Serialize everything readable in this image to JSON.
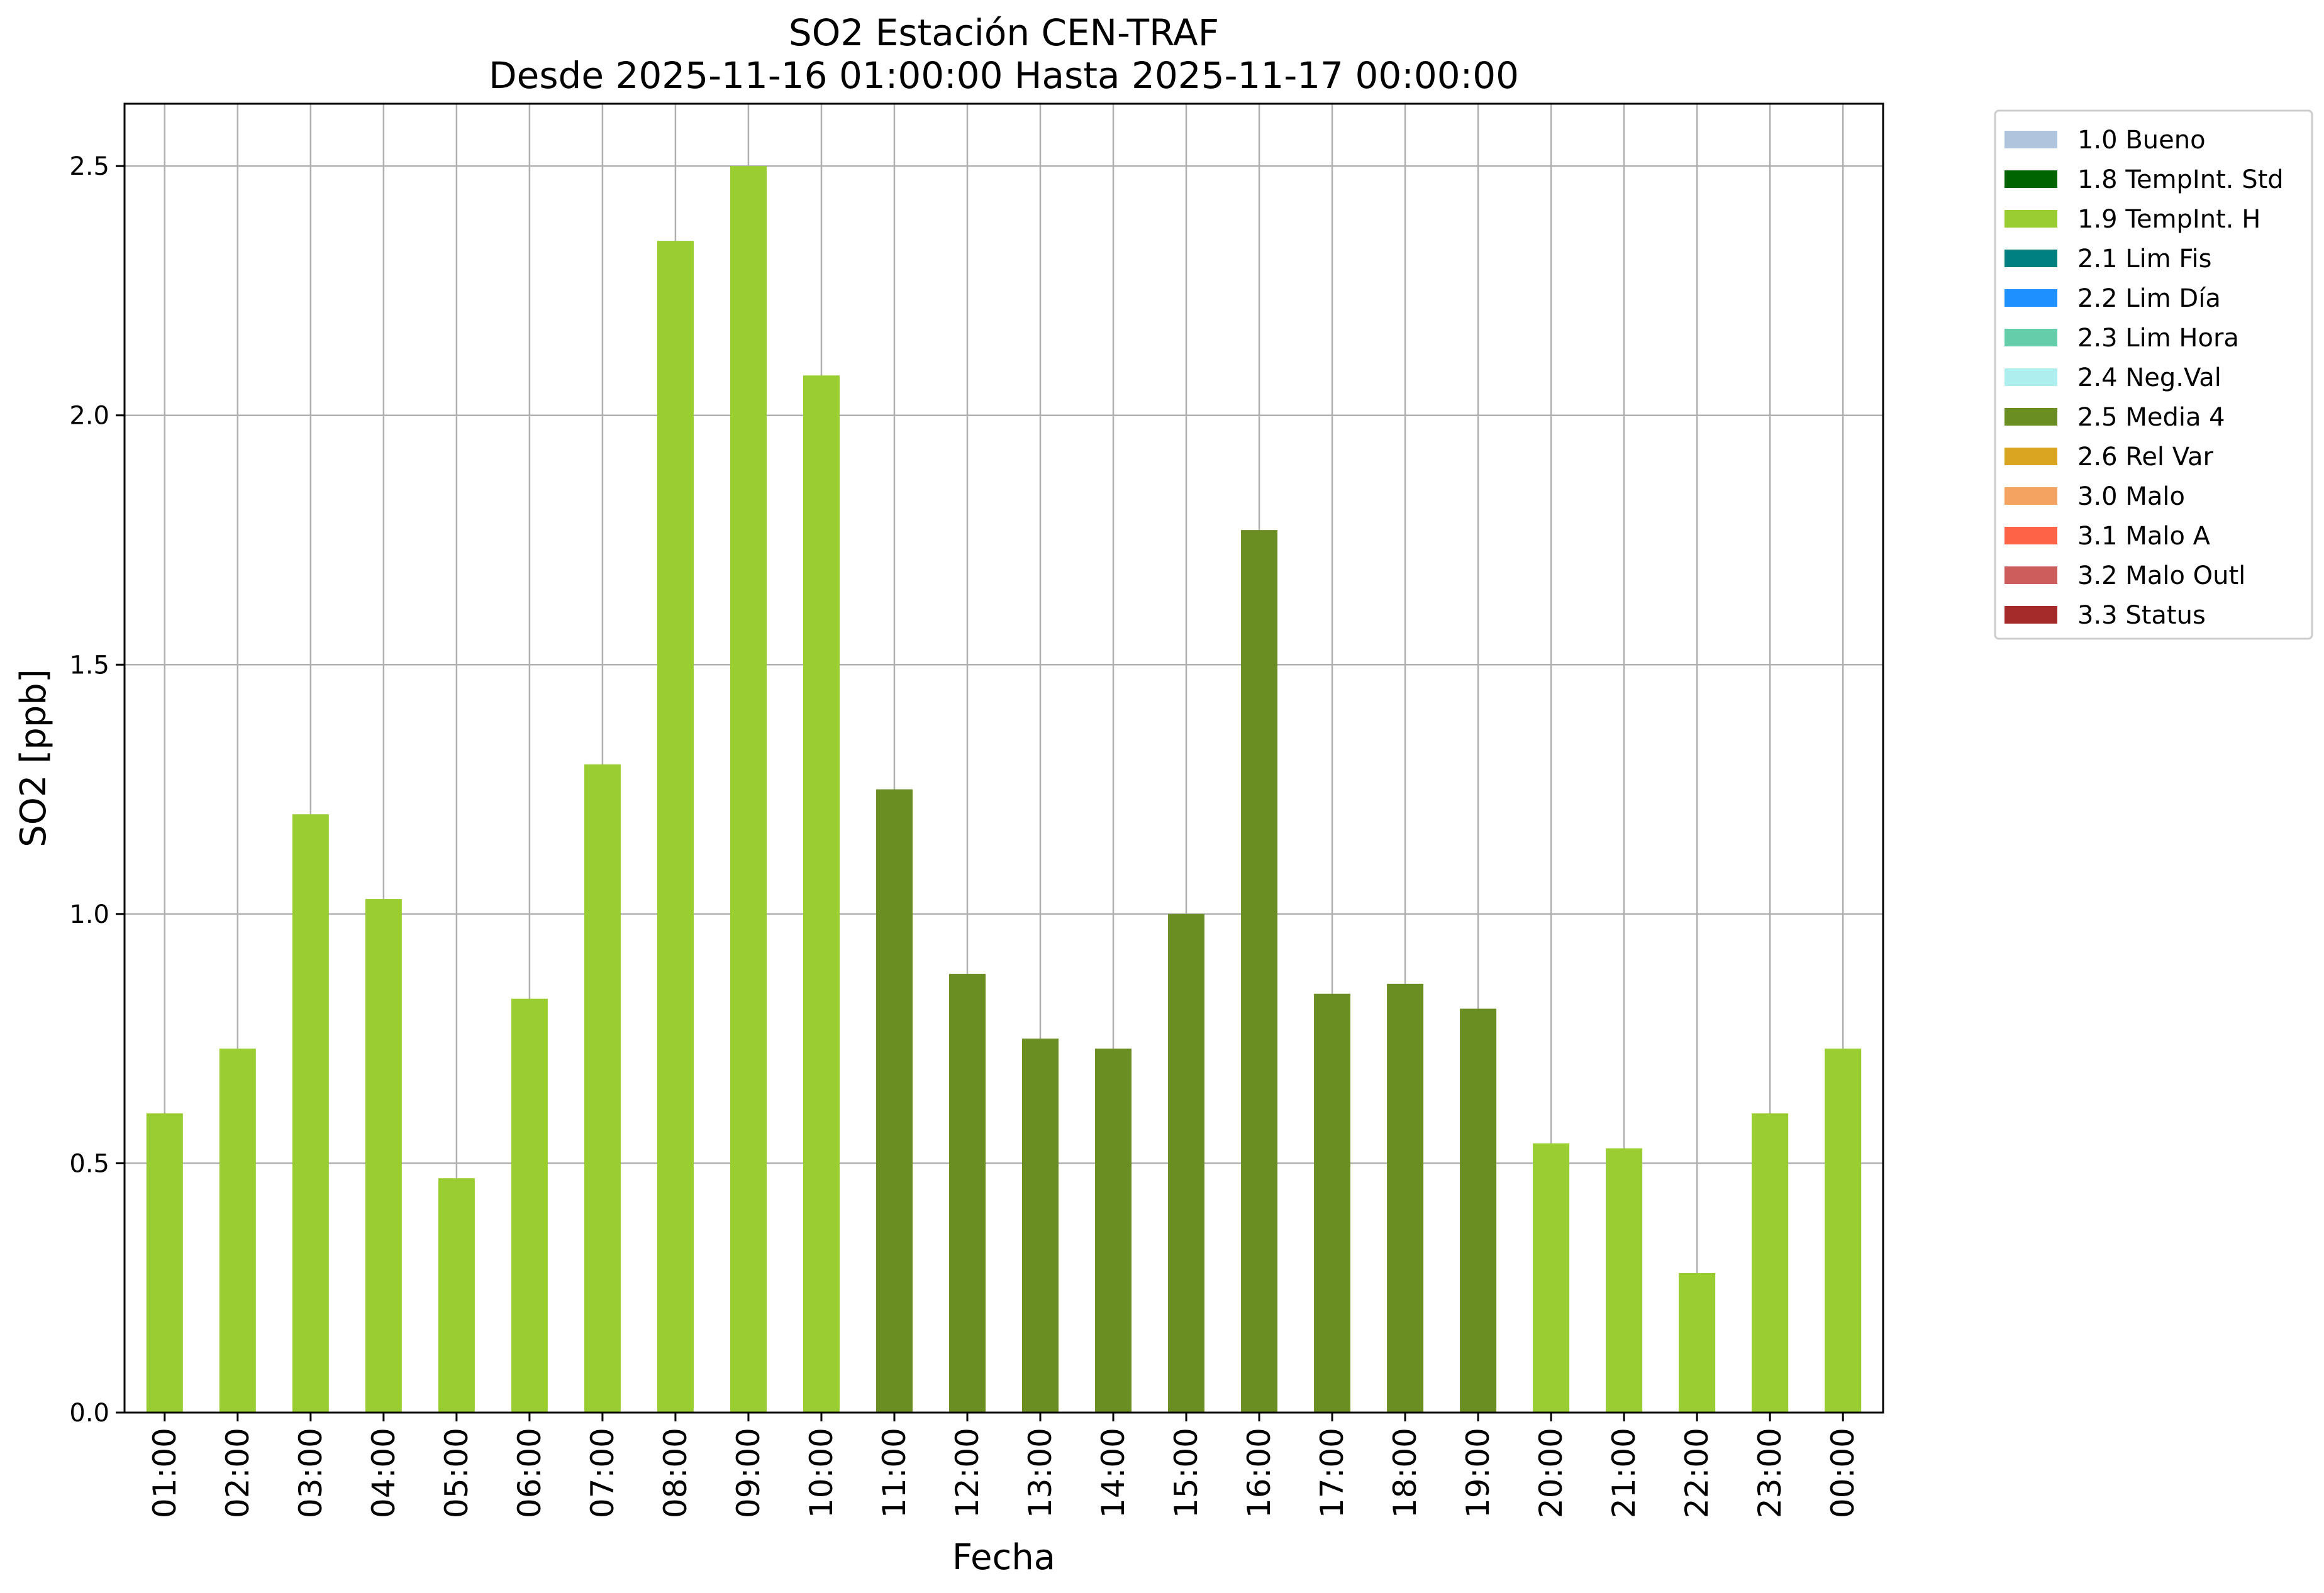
{
  "chart_data": {
    "type": "bar",
    "title": "SO2 Estación CEN-TRAF",
    "subtitle": "Desde 2025-11-16 01:00:00 Hasta 2025-11-17 00:00:00",
    "xlabel": "Fecha",
    "ylabel": "SO2 [ppb]",
    "ylim": [
      0,
      2.625
    ],
    "yticks": [
      "0.0",
      "0.5",
      "1.0",
      "1.5",
      "2.0",
      "2.5"
    ],
    "grid": true,
    "legend_position": "outside-top-right",
    "categories": [
      "01:00",
      "02:00",
      "03:00",
      "04:00",
      "05:00",
      "06:00",
      "07:00",
      "08:00",
      "09:00",
      "10:00",
      "11:00",
      "12:00",
      "13:00",
      "14:00",
      "15:00",
      "16:00",
      "17:00",
      "18:00",
      "19:00",
      "20:00",
      "21:00",
      "22:00",
      "23:00",
      "00:00"
    ],
    "values": [
      0.6,
      0.73,
      1.2,
      1.03,
      0.47,
      0.83,
      1.3,
      2.35,
      2.5,
      2.08,
      1.25,
      0.88,
      0.75,
      0.73,
      1.0,
      1.77,
      0.84,
      0.86,
      0.81,
      0.54,
      0.53,
      0.28,
      0.6,
      0.73
    ],
    "flags": [
      "1.9 TempInt. H",
      "1.9 TempInt. H",
      "1.9 TempInt. H",
      "1.9 TempInt. H",
      "1.9 TempInt. H",
      "1.9 TempInt. H",
      "1.9 TempInt. H",
      "1.9 TempInt. H",
      "1.9 TempInt. H",
      "1.9 TempInt. H",
      "2.5 Media 4",
      "2.5 Media 4",
      "2.5 Media 4",
      "2.5 Media 4",
      "2.5 Media 4",
      "2.5 Media 4",
      "2.5 Media 4",
      "2.5 Media 4",
      "2.5 Media 4",
      "1.9 TempInt. H",
      "1.9 TempInt. H",
      "1.9 TempInt. H",
      "1.9 TempInt. H",
      "1.9 TempInt. H"
    ],
    "legend": [
      {
        "label": "1.0 Bueno",
        "color": "#b0c4de"
      },
      {
        "label": "1.8 TempInt. Std",
        "color": "#006400"
      },
      {
        "label": "1.9 TempInt. H",
        "color": "#9acd32"
      },
      {
        "label": "2.1 Lim Fis",
        "color": "#008080"
      },
      {
        "label": "2.2 Lim Día",
        "color": "#1e90ff"
      },
      {
        "label": "2.3 Lim Hora",
        "color": "#66cdaa"
      },
      {
        "label": "2.4 Neg.Val",
        "color": "#afeeee"
      },
      {
        "label": "2.5 Media 4",
        "color": "#6b8e23"
      },
      {
        "label": "2.6 Rel Var",
        "color": "#daa520"
      },
      {
        "label": "3.0 Malo",
        "color": "#f4a460"
      },
      {
        "label": "3.1 Malo A",
        "color": "#ff6347"
      },
      {
        "label": "3.2 Malo Outl",
        "color": "#cd5c5c"
      },
      {
        "label": "3.3 Status",
        "color": "#a52a2a"
      }
    ]
  }
}
